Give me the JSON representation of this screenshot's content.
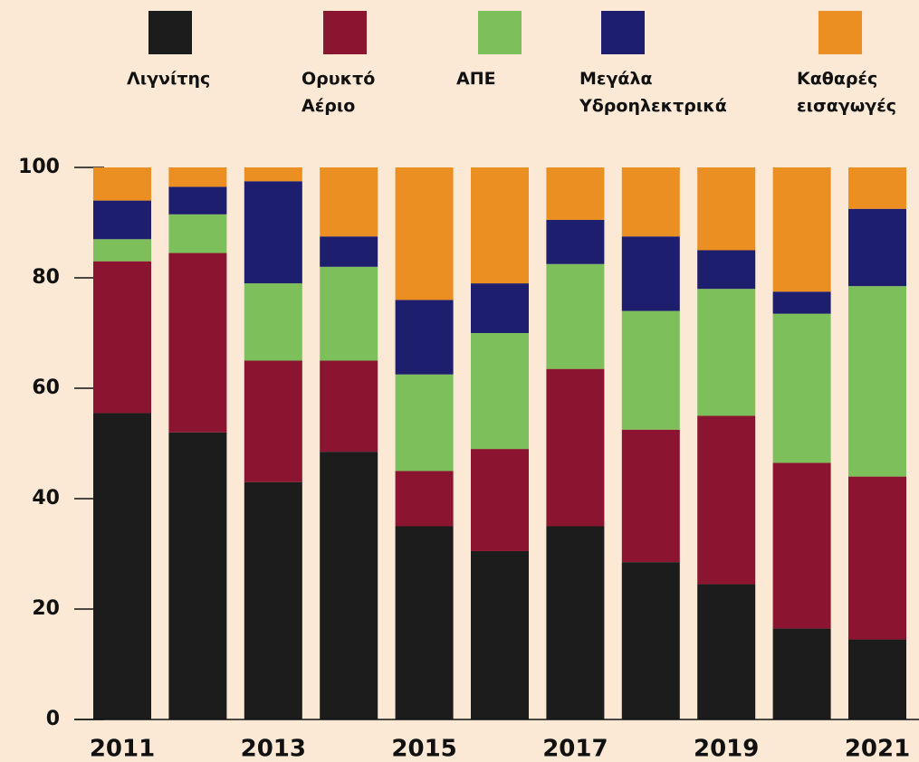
{
  "chart_data": {
    "type": "stacked_bar",
    "categories": [
      "2011",
      null,
      "2013",
      null,
      "2015",
      null,
      "2017",
      null,
      "2019",
      null,
      "2021"
    ],
    "series": [
      {
        "name": "Λιγνίτης",
        "color": "#1c1c1c",
        "values": [
          55.5,
          52,
          43,
          48.5,
          35,
          30.5,
          35,
          28.5,
          24.5,
          16.5,
          14.5
        ]
      },
      {
        "name": "Ορυκτό\nΑέριο",
        "color": "#8b1530",
        "values": [
          27.5,
          32.5,
          22,
          16.5,
          10,
          18.5,
          28.5,
          24,
          30.5,
          30,
          29.5
        ]
      },
      {
        "name": "ΑΠΕ",
        "color": "#7dbf5a",
        "values": [
          4,
          7,
          14,
          17,
          17.5,
          21,
          19,
          21.5,
          23,
          27,
          34.5
        ]
      },
      {
        "name": "Μεγάλα\nΥδροηλεκτρικά",
        "color": "#1e1e6e",
        "values": [
          7,
          5,
          18.5,
          5.5,
          13.5,
          9,
          8,
          13.5,
          7,
          4,
          14
        ]
      },
      {
        "name": "Καθαρές\nεισαγωγές",
        "color": "#ec8f23",
        "values": [
          6,
          3.5,
          2.5,
          12.5,
          24,
          21,
          9.5,
          12.5,
          15,
          22.5,
          7.5
        ]
      }
    ],
    "ylim": [
      0,
      100
    ],
    "yticks": [
      0,
      20,
      40,
      60,
      80,
      100
    ],
    "grid": false
  }
}
